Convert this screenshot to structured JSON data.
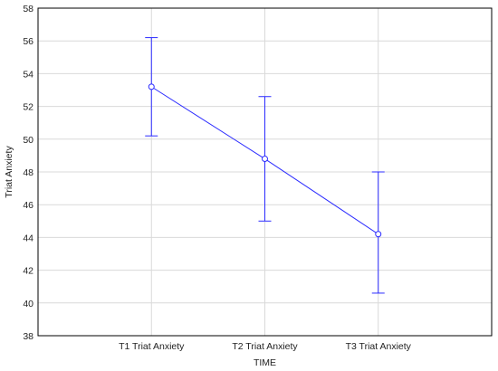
{
  "chart_data": {
    "type": "line",
    "xlabel": "TIME",
    "ylabel": "Triat Anxiety",
    "ylim": [
      38,
      58
    ],
    "yticks": [
      "38",
      "40",
      "42",
      "44",
      "46",
      "48",
      "50",
      "52",
      "54",
      "56",
      "58"
    ],
    "categories": [
      "T1 Triat Anxiety",
      "T2 Triat Anxiety",
      "T3 Triat Anxiety"
    ],
    "series": [
      {
        "values": [
          53.2,
          48.8,
          44.2
        ],
        "lower": [
          50.2,
          45.0,
          40.6
        ],
        "upper": [
          56.2,
          52.6,
          48.0
        ],
        "color": "#2b2bff"
      }
    ],
    "grid": true,
    "legend": "none"
  }
}
